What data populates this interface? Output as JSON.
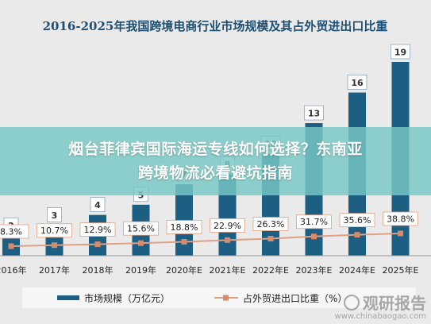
{
  "overlay": {
    "line1": "烟台菲律宾国际海运专线如何选择？东南亚",
    "line2": "跨境物流必看避坑指南"
  },
  "watermark": {
    "brand": "观研报告",
    "url": "www.chinabaogao.com"
  },
  "colors": {
    "bar": "#1d5f83",
    "line": "#e0a084",
    "marker": "#d98a6a",
    "background": "#eaeaea",
    "overlay": "#78c8c4"
  },
  "chart_data": {
    "type": "bar",
    "title": "2016-2025年我国跨境电商行业市场规模及其占外贸进出口比重",
    "categories": [
      "2016年",
      "2017年",
      "2018年",
      "2019年",
      "2020年E",
      "2021年E",
      "2022年E",
      "2023年E",
      "2024年E",
      "2025年E"
    ],
    "series": [
      {
        "name": "市场规模（万亿元）",
        "type": "bar",
        "values": [
          2,
          3,
          4,
          5,
          7,
          8,
          10,
          13,
          16,
          19
        ],
        "labels": [
          "2",
          "3",
          "4",
          "5",
          "7",
          "8",
          "10",
          "13",
          "16",
          "19"
        ]
      },
      {
        "name": "占外贸进出口比重（%）",
        "type": "line",
        "values": [
          8.3,
          10.7,
          12.9,
          15.6,
          18.8,
          22.9,
          26.3,
          31.7,
          35.6,
          38.8
        ],
        "labels": [
          "8.3%",
          "10.7%",
          "12.9%",
          "15.6%",
          "18.8%",
          "22.9%",
          "26.3%",
          "31.7%",
          "35.6%",
          "38.8%"
        ]
      }
    ],
    "legend_position": "bottom",
    "grid": false
  }
}
